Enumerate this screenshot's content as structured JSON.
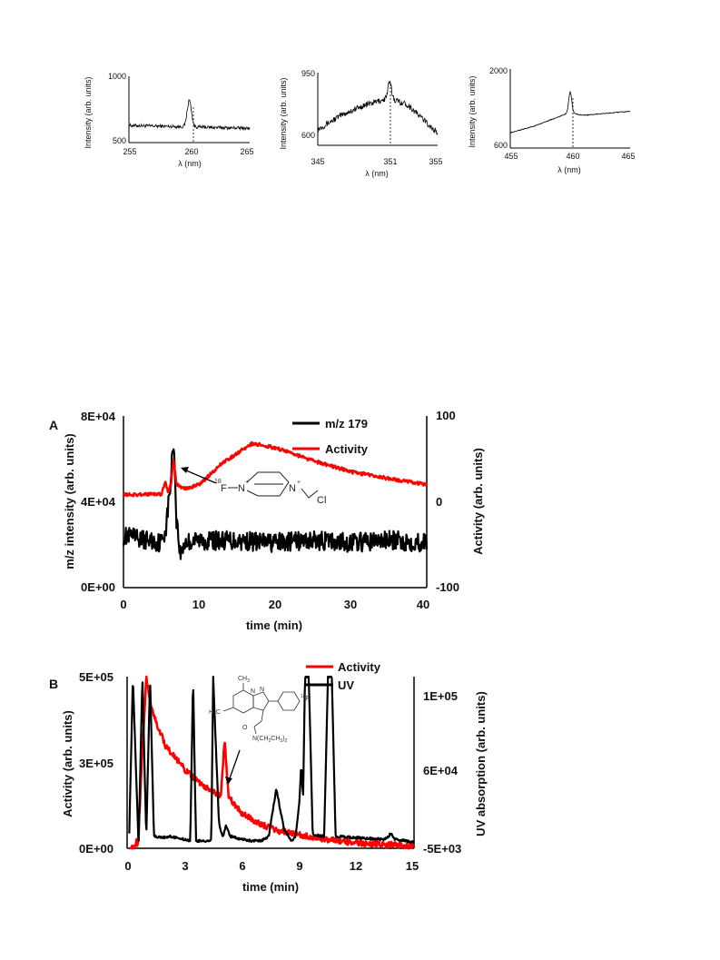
{
  "chart_data": [
    {
      "id": "spec1",
      "type": "line",
      "title": "",
      "xlabel": "λ (nm)",
      "ylabel": "Intensity (arb. units)",
      "xlim": [
        255,
        265
      ],
      "ylim": [
        420,
        1000
      ],
      "xticks": [
        "255",
        "260",
        "265"
      ],
      "yticks": [
        "500",
        "1000"
      ],
      "peak_x": 260,
      "peak_y": 790,
      "baseline_start": 570,
      "baseline_end": 545,
      "noise": 14,
      "peak_width": 0.35,
      "legend": "none"
    },
    {
      "id": "spec2",
      "type": "line",
      "title": "",
      "xlabel": "λ (nm)",
      "ylabel": "Intensity (arb. units)",
      "xlim": [
        345,
        355
      ],
      "ylim": [
        520,
        950
      ],
      "xticks": [
        "345",
        "351",
        "355"
      ],
      "yticks": [
        "600",
        "950"
      ],
      "peak_x": 351,
      "peak_y": 890,
      "shape": "hump",
      "hump_points": [
        [
          345,
          615
        ],
        [
          347,
          700
        ],
        [
          349,
          760
        ],
        [
          351,
          800
        ],
        [
          352.5,
          760
        ],
        [
          354,
          660
        ],
        [
          355,
          590
        ]
      ],
      "noise": 18,
      "peak_width": 0.3,
      "legend": "none"
    },
    {
      "id": "spec3",
      "type": "line",
      "title": "",
      "xlabel": "λ (nm)",
      "ylabel": "Intensity (arb. units)",
      "xlim": [
        455,
        465
      ],
      "ylim": [
        450,
        2000
      ],
      "xticks": [
        "455",
        "460",
        "465"
      ],
      "yticks": [
        "600",
        "2000"
      ],
      "peak_x": 460,
      "peak_y": 1550,
      "shape": "rise",
      "hump_points": [
        [
          455,
          750
        ],
        [
          457,
          880
        ],
        [
          459,
          1060
        ],
        [
          460,
          1150
        ],
        [
          461,
          1090
        ],
        [
          463,
          1130
        ],
        [
          465,
          1170
        ]
      ],
      "noise": 8,
      "peak_width": 0.25,
      "legend": "none"
    },
    {
      "id": "chartA",
      "panel_label": "A",
      "type": "line",
      "xlabel": "time (min)",
      "ylabel_left": "m/z intensity (arb. units)",
      "ylabel_right": "Activity (arb. units)",
      "xlim": [
        0,
        40
      ],
      "ylim_left": [
        0,
        80000
      ],
      "ylim_right": [
        -100,
        100
      ],
      "xticks": [
        "0",
        "10",
        "20",
        "30",
        "40"
      ],
      "yticks_left": [
        "0E+00",
        "4E+04",
        "8E+04"
      ],
      "yticks_right": [
        "-100",
        "0",
        "100"
      ],
      "legend": "top-right",
      "series": [
        {
          "name": "m/z 179",
          "color": "#000000",
          "axis": "left",
          "points": [
            [
              0,
              24000
            ],
            [
              5,
              21000
            ],
            [
              5.6,
              28000
            ],
            [
              6.2,
              48000
            ],
            [
              6.6,
              70000
            ],
            [
              7.0,
              32000
            ],
            [
              7.5,
              15000
            ],
            [
              8,
              21000
            ],
            [
              10,
              22000
            ],
            [
              15,
              22000
            ],
            [
              20,
              21000
            ],
            [
              25,
              22000
            ],
            [
              30,
              21000
            ],
            [
              35,
              22000
            ],
            [
              40,
              21000
            ]
          ],
          "noise": 4500
        },
        {
          "name": "Activity",
          "color": "#ff0000",
          "axis": "right",
          "points": [
            [
              0,
              8
            ],
            [
              5,
              9
            ],
            [
              5.5,
              23
            ],
            [
              5.9,
              10
            ],
            [
              6.3,
              22
            ],
            [
              6.6,
              50
            ],
            [
              7.0,
              20
            ],
            [
              8,
              15
            ],
            [
              10,
              20
            ],
            [
              13,
              45
            ],
            [
              17,
              68
            ],
            [
              20,
              63
            ],
            [
              25,
              48
            ],
            [
              30,
              35
            ],
            [
              35,
              27
            ],
            [
              40,
              20
            ]
          ],
          "noise": 2
        }
      ],
      "annotation": {
        "superscript": "18",
        "fluorine": "F",
        "nitrogen": "N",
        "plus": "+",
        "chlorine": "Cl"
      }
    },
    {
      "id": "chartB",
      "panel_label": "B",
      "type": "line",
      "xlabel": "time (min)",
      "ylabel_left": "Activity (arb. units)",
      "ylabel_right": "UV absorption (arb. units)",
      "xlim": [
        0,
        15
      ],
      "ylim_left": [
        0,
        500000
      ],
      "ylim_right": [
        -5000,
        110000
      ],
      "xticks": [
        "0",
        "3",
        "6",
        "9",
        "12",
        "15"
      ],
      "yticks_left": [
        "0E+00",
        "3E+05",
        "5E+05"
      ],
      "yticks_right": [
        "-5E+03",
        "6E+04",
        "1E+05"
      ],
      "legend": "top-right",
      "series": [
        {
          "name": "Activity",
          "color": "#ff0000",
          "axis": "left",
          "points": [
            [
              0.1,
              0
            ],
            [
              0.4,
              0
            ],
            [
              0.5,
              20000
            ],
            [
              0.55,
              0
            ],
            [
              1.0,
              500000
            ],
            [
              1.3,
              400000
            ],
            [
              2,
              300000
            ],
            [
              3,
              230000
            ],
            [
              4,
              180000
            ],
            [
              4.9,
              150000
            ],
            [
              5.1,
              320000
            ],
            [
              5.3,
              150000
            ],
            [
              6,
              100000
            ],
            [
              7,
              70000
            ],
            [
              8,
              50000
            ],
            [
              9,
              40000
            ],
            [
              10,
              30000
            ],
            [
              11,
              22000
            ],
            [
              12,
              16000
            ],
            [
              13,
              12000
            ],
            [
              14,
              9000
            ],
            [
              15,
              6000
            ]
          ],
          "noise": 9000
        },
        {
          "name": "UV",
          "color": "#000000",
          "axis": "right",
          "points": [
            [
              0.1,
              -3000
            ],
            [
              0.3,
              110000
            ],
            [
              0.6,
              -3000
            ],
            [
              0.8,
              110000
            ],
            [
              1.0,
              2000
            ],
            [
              1.2,
              110000
            ],
            [
              1.4,
              3000
            ],
            [
              1.8,
              2000
            ],
            [
              2.2,
              3000
            ],
            [
              3.0,
              1000
            ],
            [
              3.3,
              0
            ],
            [
              3.45,
              110000
            ],
            [
              3.6,
              0
            ],
            [
              4.0,
              0
            ],
            [
              4.4,
              0
            ],
            [
              4.5,
              110000
            ],
            [
              4.8,
              12000
            ],
            [
              5.0,
              2000
            ],
            [
              5.15,
              10000
            ],
            [
              5.4,
              3000
            ],
            [
              6,
              1000
            ],
            [
              6.5,
              0
            ],
            [
              7.0,
              0
            ],
            [
              7.4,
              3000
            ],
            [
              7.8,
              35000
            ],
            [
              8.2,
              8000
            ],
            [
              8.6,
              0
            ],
            [
              8.8,
              3000
            ],
            [
              9.0,
              25000
            ],
            [
              9.1,
              50000
            ],
            [
              9.2,
              30000
            ],
            [
              9.3,
              110000
            ],
            [
              9.5,
              110000
            ],
            [
              9.7,
              4000
            ],
            [
              10.3,
              3000
            ],
            [
              10.5,
              110000
            ],
            [
              10.7,
              110000
            ],
            [
              10.9,
              3000
            ],
            [
              12,
              2000
            ],
            [
              13.5,
              1000
            ],
            [
              13.8,
              5000
            ],
            [
              14.0,
              1000
            ],
            [
              15,
              -1000
            ]
          ],
          "noise": 800
        }
      ],
      "annotation": {
        "ch3_top": "CH",
        "ch3_top_sub": "3",
        "h3c": "H",
        "h3c_sub": "3",
        "h3c_c": "C",
        "n1": "N",
        "n2": "N",
        "o": "O",
        "amide": "N(CH",
        "amide_sub1": "2",
        "amide_mid": "CH",
        "amide_sub2": "3",
        "amide_end": ")",
        "amide_sub3": "2",
        "f_sup": "18",
        "f": "F"
      }
    }
  ]
}
